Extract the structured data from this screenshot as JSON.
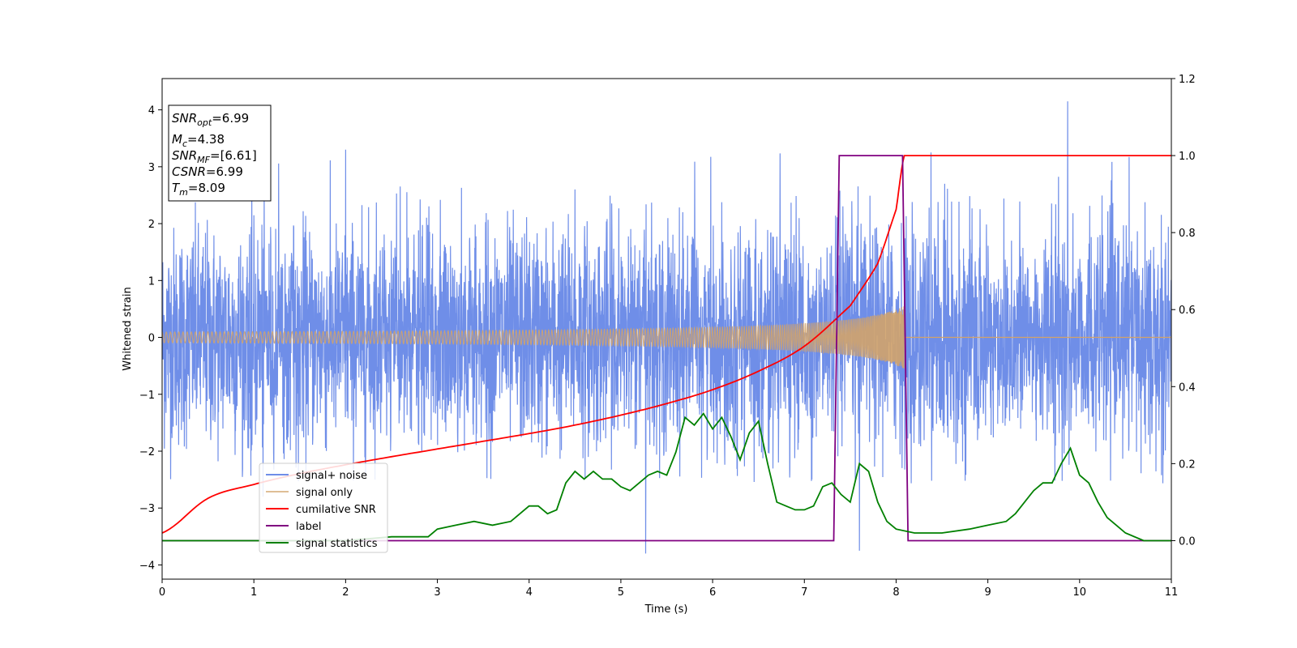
{
  "chart_data": {
    "type": "line",
    "title": "",
    "xlabel": "Time (s)",
    "ylabel": "Whitened strain",
    "xlim": [
      0,
      11
    ],
    "ylim": [
      -4.25,
      4.55
    ],
    "y2lim": [
      -0.1,
      1.2
    ],
    "xticks": [
      "0",
      "1",
      "2",
      "3",
      "4",
      "5",
      "6",
      "7",
      "8",
      "9",
      "10",
      "11"
    ],
    "yticks": [
      "−4",
      "−3",
      "−2",
      "−1",
      "0",
      "1",
      "2",
      "3",
      "4"
    ],
    "y2ticks": [
      "0.0",
      "0.2",
      "0.4",
      "0.6",
      "0.8",
      "1.0",
      "1.2"
    ],
    "grid": false,
    "legend_position": "lower-left",
    "annotation": {
      "lines": [
        {
          "base": "SNR",
          "sub": "opt",
          "rest": "=6.99"
        },
        {
          "base": "M",
          "sub": "c",
          "rest": "=4.38"
        },
        {
          "base": "SNR",
          "sub": "MF",
          "rest": "=[6.61]"
        },
        {
          "base": "CSNR",
          "sub": "",
          "rest": "=6.99"
        },
        {
          "base": "T",
          "sub": "m",
          "rest": "=8.09"
        }
      ]
    },
    "series": [
      {
        "name": "signal+ noise",
        "color": "#6f8ee8",
        "axis": "left",
        "noise_range": [
          -2.6,
          3.3
        ],
        "spikes": [
          [
            2.0,
            3.3
          ],
          [
            5.27,
            -3.8
          ],
          [
            7.6,
            -3.75
          ],
          [
            8.38,
            3.25
          ],
          [
            9.87,
            4.15
          ],
          [
            1.1,
            -2.8
          ],
          [
            4.5,
            2.6
          ]
        ]
      },
      {
        "name": "signal only",
        "color": "#d2a36a",
        "axis": "left",
        "chirp_start": 0,
        "chirp_merger": 8.09,
        "amplitude_start": 0.05,
        "amplitude_merger": 0.55
      },
      {
        "name": "cumilative SNR",
        "color": "#ff0000",
        "axis": "right",
        "x": [
          0,
          0.5,
          1,
          1.5,
          2,
          2.5,
          3,
          3.5,
          4,
          4.5,
          5,
          5.5,
          6,
          6.5,
          7,
          7.5,
          7.8,
          8.0,
          8.09,
          11
        ],
        "values": [
          0.02,
          0.11,
          0.146,
          0.174,
          0.197,
          0.218,
          0.238,
          0.258,
          0.278,
          0.3,
          0.326,
          0.356,
          0.392,
          0.44,
          0.505,
          0.61,
          0.72,
          0.86,
          1.0,
          1.0
        ]
      },
      {
        "name": "label",
        "color": "#800080",
        "axis": "right",
        "x": [
          0,
          7.32,
          7.38,
          8.07,
          8.13,
          11
        ],
        "values": [
          0,
          0,
          1,
          1,
          0,
          0
        ]
      },
      {
        "name": "signal statistics",
        "color": "#008000",
        "axis": "right",
        "x": [
          0,
          1,
          2,
          2.5,
          2.9,
          3.0,
          3.2,
          3.4,
          3.6,
          3.8,
          3.9,
          4.0,
          4.1,
          4.2,
          4.3,
          4.4,
          4.5,
          4.6,
          4.7,
          4.8,
          4.9,
          5.0,
          5.1,
          5.2,
          5.3,
          5.4,
          5.5,
          5.6,
          5.7,
          5.8,
          5.9,
          6.0,
          6.1,
          6.2,
          6.3,
          6.4,
          6.5,
          6.6,
          6.7,
          6.8,
          6.9,
          7.0,
          7.1,
          7.2,
          7.3,
          7.4,
          7.5,
          7.6,
          7.7,
          7.8,
          7.9,
          8.0,
          8.2,
          8.5,
          8.8,
          9.0,
          9.2,
          9.3,
          9.4,
          9.5,
          9.6,
          9.7,
          9.8,
          9.9,
          10.0,
          10.1,
          10.2,
          10.3,
          10.4,
          10.5,
          10.7,
          11.0
        ],
        "values": [
          0.0,
          0.0,
          0.0,
          0.01,
          0.01,
          0.03,
          0.04,
          0.05,
          0.04,
          0.05,
          0.07,
          0.09,
          0.09,
          0.07,
          0.08,
          0.15,
          0.18,
          0.16,
          0.18,
          0.16,
          0.16,
          0.14,
          0.13,
          0.15,
          0.17,
          0.18,
          0.17,
          0.23,
          0.32,
          0.3,
          0.33,
          0.29,
          0.32,
          0.27,
          0.21,
          0.28,
          0.31,
          0.2,
          0.1,
          0.09,
          0.08,
          0.08,
          0.09,
          0.14,
          0.15,
          0.12,
          0.1,
          0.2,
          0.18,
          0.1,
          0.05,
          0.03,
          0.02,
          0.02,
          0.03,
          0.04,
          0.05,
          0.07,
          0.1,
          0.13,
          0.15,
          0.15,
          0.2,
          0.24,
          0.17,
          0.15,
          0.1,
          0.06,
          0.04,
          0.02,
          0.0,
          0.0
        ]
      }
    ]
  }
}
